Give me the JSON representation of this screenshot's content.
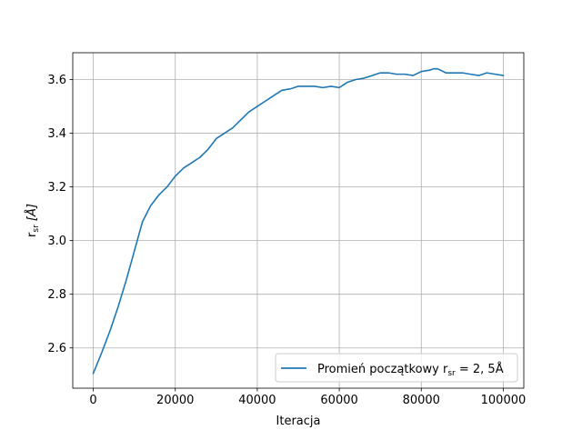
{
  "chart_data": {
    "type": "line",
    "title": "",
    "xlabel": "Iteracja",
    "ylabel": "r_sr [Å]",
    "ylabel_parts": {
      "main": "r",
      "sub": "sr",
      "rest": " [Å]"
    },
    "xlim": [
      -5000,
      105000
    ],
    "ylim": [
      2.45,
      3.7
    ],
    "xticks": [
      0,
      20000,
      40000,
      60000,
      80000,
      100000
    ],
    "xtick_labels": [
      "0",
      "20000",
      "40000",
      "60000",
      "80000",
      "100000"
    ],
    "yticks": [
      2.6,
      2.8,
      3.0,
      3.2,
      3.4,
      3.6
    ],
    "ytick_labels": [
      "2.6",
      "2.8",
      "3.0",
      "3.2",
      "3.4",
      "3.6"
    ],
    "grid": true,
    "legend_position": "lower-right",
    "legend": {
      "prefix": "Promień początkowy r",
      "sub": "sr",
      "suffix": " = 2, 5Å"
    },
    "series": [
      {
        "name": "Promień początkowy r_sr = 2, 5Å",
        "color": "#1f77b4",
        "x": [
          0,
          2000,
          4000,
          6000,
          8000,
          10000,
          12000,
          14000,
          16000,
          18000,
          19000,
          20000,
          22000,
          24000,
          26000,
          28000,
          30000,
          32000,
          34000,
          36000,
          38000,
          40000,
          42000,
          44000,
          46000,
          48000,
          50000,
          52000,
          54000,
          56000,
          58000,
          60000,
          62000,
          64000,
          66000,
          68000,
          70000,
          72000,
          74000,
          76000,
          78000,
          80000,
          82000,
          83000,
          84000,
          86000,
          88000,
          90000,
          92000,
          94000,
          96000,
          98000,
          100000
        ],
        "y": [
          2.505,
          2.58,
          2.66,
          2.75,
          2.85,
          2.96,
          3.07,
          3.13,
          3.17,
          3.2,
          3.22,
          3.24,
          3.27,
          3.29,
          3.31,
          3.34,
          3.38,
          3.4,
          3.42,
          3.45,
          3.48,
          3.5,
          3.52,
          3.54,
          3.56,
          3.565,
          3.575,
          3.575,
          3.575,
          3.57,
          3.575,
          3.57,
          3.59,
          3.6,
          3.605,
          3.615,
          3.625,
          3.625,
          3.62,
          3.62,
          3.615,
          3.63,
          3.635,
          3.64,
          3.64,
          3.625,
          3.625,
          3.625,
          3.62,
          3.615,
          3.625,
          3.62,
          3.615
        ]
      }
    ]
  }
}
